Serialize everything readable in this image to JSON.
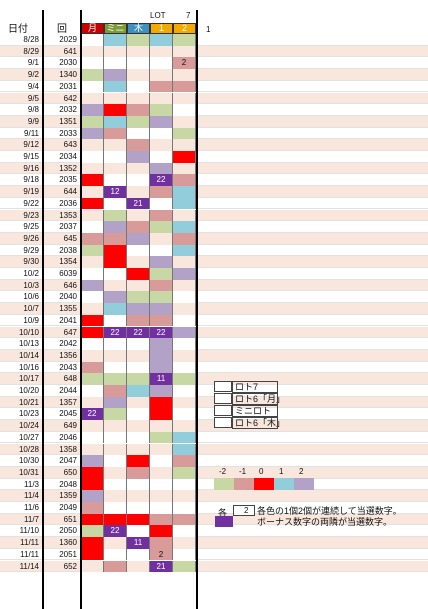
{
  "header": {
    "date_label": "日付",
    "round_label": "回",
    "col_labels": [
      "月",
      "ミニ",
      "木",
      "1",
      "2"
    ],
    "col_colors": [
      "#cc0000",
      "#7f9c3c",
      "#3f8fbf",
      "#f2a900",
      "#f2a900"
    ],
    "lot_label": "LOT",
    "top_right_label": "7",
    "extra_label": "1"
  },
  "colors": {
    "pink": "#f9e6dc",
    "gray": "#efefef",
    "c_m2": "#c7d8a4",
    "c_m1": "#d99a9a",
    "c_0": "#ff0000",
    "c_p1": "#92cddc",
    "c_p2": "#b3a2c7",
    "bonus": "#7030a0"
  },
  "rows": [
    {
      "date": "8/28",
      "round": "2029",
      "cells": [
        "",
        "c_p1",
        "c_m2",
        "c_p1",
        "c_m2"
      ],
      "labels": [
        "",
        "",
        "",
        "",
        ""
      ]
    },
    {
      "date": "8/29",
      "round": "641",
      "cells": [
        "",
        "",
        "",
        "",
        ""
      ],
      "labels": [
        "",
        "",
        "",
        "",
        ""
      ]
    },
    {
      "date": "9/1",
      "round": "2030",
      "cells": [
        "",
        "",
        "",
        "",
        "c_m1"
      ],
      "labels": [
        "",
        "",
        "",
        "",
        "2"
      ]
    },
    {
      "date": "9/2",
      "round": "1340",
      "cells": [
        "c_m2",
        "c_p2",
        "",
        "",
        ""
      ],
      "labels": [
        "",
        "",
        "",
        "",
        ""
      ]
    },
    {
      "date": "9/4",
      "round": "2031",
      "cells": [
        "",
        "c_p1",
        "",
        "c_m1",
        "c_m1"
      ],
      "labels": [
        "",
        "",
        "",
        "",
        ""
      ]
    },
    {
      "date": "9/5",
      "round": "642",
      "cells": [
        "",
        "",
        "",
        "",
        ""
      ],
      "labels": [
        "",
        "",
        "",
        "",
        ""
      ]
    },
    {
      "date": "9/8",
      "round": "2032",
      "cells": [
        "c_p2",
        "c_0",
        "c_m1",
        "c_m2",
        ""
      ],
      "labels": [
        "",
        "",
        "",
        "",
        ""
      ]
    },
    {
      "date": "9/9",
      "round": "1351",
      "cells": [
        "c_m2",
        "c_p1",
        "c_m2",
        "c_p2",
        ""
      ],
      "labels": [
        "",
        "",
        "",
        "",
        ""
      ]
    },
    {
      "date": "9/11",
      "round": "2033",
      "cells": [
        "c_p2",
        "c_m1",
        "",
        "",
        "c_m2"
      ],
      "labels": [
        "",
        "",
        "",
        "",
        ""
      ]
    },
    {
      "date": "9/12",
      "round": "643",
      "cells": [
        "",
        "",
        "c_m1",
        "",
        ""
      ],
      "labels": [
        "",
        "",
        "",
        "",
        ""
      ]
    },
    {
      "date": "9/15",
      "round": "2034",
      "cells": [
        "",
        "",
        "c_p2",
        "",
        "c_0"
      ],
      "labels": [
        "",
        "",
        "",
        "",
        ""
      ]
    },
    {
      "date": "9/16",
      "round": "1352",
      "cells": [
        "",
        "",
        "",
        "c_p2",
        ""
      ],
      "labels": [
        "",
        "",
        "",
        "",
        ""
      ]
    },
    {
      "date": "9/18",
      "round": "2035",
      "cells": [
        "c_0",
        "",
        "",
        "bonus",
        "c_m1"
      ],
      "labels": [
        "",
        "",
        "",
        "22",
        ""
      ]
    },
    {
      "date": "9/19",
      "round": "644",
      "cells": [
        "",
        "bonus",
        "",
        "c_m1",
        "c_p1"
      ],
      "labels": [
        "",
        "12",
        "",
        "",
        ""
      ]
    },
    {
      "date": "9/22",
      "round": "2036",
      "cells": [
        "c_0",
        "",
        "bonus",
        "",
        "c_p1"
      ],
      "labels": [
        "",
        "",
        "21",
        "",
        ""
      ]
    },
    {
      "date": "9/23",
      "round": "1353",
      "cells": [
        "",
        "c_m2",
        "",
        "c_m1",
        ""
      ],
      "labels": [
        "",
        "",
        "",
        "",
        ""
      ]
    },
    {
      "date": "9/25",
      "round": "2037",
      "cells": [
        "",
        "c_p2",
        "c_m1",
        "c_m2",
        "c_p1"
      ],
      "labels": [
        "",
        "",
        "",
        "",
        ""
      ]
    },
    {
      "date": "9/26",
      "round": "645",
      "cells": [
        "c_m1",
        "c_m1",
        "c_p2",
        "",
        "c_m1"
      ],
      "labels": [
        "",
        "",
        "",
        "",
        ""
      ]
    },
    {
      "date": "9/29",
      "round": "2038",
      "cells": [
        "c_m2",
        "c_0",
        "",
        "",
        "c_p1"
      ],
      "labels": [
        "",
        "",
        "",
        "",
        ""
      ]
    },
    {
      "date": "9/30",
      "round": "1354",
      "cells": [
        "",
        "c_0",
        "",
        "c_p2",
        ""
      ],
      "labels": [
        "",
        "",
        "",
        "",
        ""
      ]
    },
    {
      "date": "10/2",
      "round": "6039",
      "cells": [
        "",
        "",
        "c_0",
        "c_m2",
        "c_p2"
      ],
      "labels": [
        "",
        "",
        "",
        "",
        ""
      ]
    },
    {
      "date": "10/3",
      "round": "646",
      "cells": [
        "c_p2",
        "",
        "",
        "c_m1",
        ""
      ],
      "labels": [
        "",
        "",
        "",
        "",
        ""
      ]
    },
    {
      "date": "10/6",
      "round": "2040",
      "cells": [
        "",
        "c_p2",
        "c_m2",
        "c_m2",
        ""
      ],
      "labels": [
        "",
        "",
        "",
        "",
        ""
      ]
    },
    {
      "date": "10/7",
      "round": "1355",
      "cells": [
        "",
        "c_p1",
        "c_p2",
        "c_p2",
        ""
      ],
      "labels": [
        "",
        "",
        "",
        "",
        ""
      ]
    },
    {
      "date": "10/9",
      "round": "2041",
      "cells": [
        "c_0",
        "",
        "c_m1",
        "c_m1",
        ""
      ],
      "labels": [
        "",
        "",
        "",
        "",
        ""
      ]
    },
    {
      "date": "10/10",
      "round": "647",
      "cells": [
        "c_0",
        "bonus",
        "bonus",
        "bonus",
        "c_p2"
      ],
      "labels": [
        "",
        "22",
        "22",
        "22",
        ""
      ]
    },
    {
      "date": "10/13",
      "round": "2042",
      "cells": [
        "",
        "",
        "",
        "c_p2",
        ""
      ],
      "labels": [
        "",
        "",
        "",
        "",
        ""
      ]
    },
    {
      "date": "10/14",
      "round": "1356",
      "cells": [
        "",
        "",
        "",
        "c_p2",
        ""
      ],
      "labels": [
        "",
        "",
        "",
        "",
        ""
      ]
    },
    {
      "date": "10/16",
      "round": "2043",
      "cells": [
        "c_m1",
        "",
        "",
        "c_p2",
        ""
      ],
      "labels": [
        "",
        "",
        "",
        "",
        ""
      ]
    },
    {
      "date": "10/17",
      "round": "648",
      "cells": [
        "c_m2",
        "c_m2",
        "c_m2",
        "bonus",
        "c_m2"
      ],
      "labels": [
        "",
        "",
        "",
        "11",
        ""
      ]
    },
    {
      "date": "10/20",
      "round": "2044",
      "cells": [
        "",
        "c_m1",
        "c_p1",
        "c_p2",
        ""
      ],
      "labels": [
        "",
        "",
        "",
        "",
        ""
      ]
    },
    {
      "date": "10/21",
      "round": "1357",
      "cells": [
        "",
        "c_p2",
        "",
        "c_0",
        ""
      ],
      "labels": [
        "",
        "",
        "",
        "",
        ""
      ]
    },
    {
      "date": "10/23",
      "round": "2045",
      "cells": [
        "bonus",
        "c_m2",
        "",
        "c_0",
        ""
      ],
      "labels": [
        "22",
        "",
        "",
        "",
        ""
      ]
    },
    {
      "date": "10/24",
      "round": "649",
      "cells": [
        "",
        "",
        "",
        "",
        ""
      ],
      "labels": [
        "",
        "",
        "",
        "",
        ""
      ]
    },
    {
      "date": "10/27",
      "round": "2046",
      "cells": [
        "",
        "",
        "",
        "c_m2",
        "c_p1"
      ],
      "labels": [
        "",
        "",
        "",
        "",
        ""
      ]
    },
    {
      "date": "10/28",
      "round": "1358",
      "cells": [
        "",
        "",
        "",
        "",
        "c_p1"
      ],
      "labels": [
        "",
        "",
        "",
        "",
        ""
      ]
    },
    {
      "date": "10/30",
      "round": "2047",
      "cells": [
        "c_p2",
        "",
        "c_0",
        "",
        "c_m1"
      ],
      "labels": [
        "",
        "",
        "",
        "",
        ""
      ]
    },
    {
      "date": "10/31",
      "round": "650",
      "cells": [
        "c_0",
        "",
        "c_m1",
        "",
        "c_m2"
      ],
      "labels": [
        "",
        "",
        "",
        "",
        ""
      ]
    },
    {
      "date": "11/3",
      "round": "2048",
      "cells": [
        "c_0",
        "",
        "",
        "",
        ""
      ],
      "labels": [
        "",
        "",
        "",
        "",
        ""
      ]
    },
    {
      "date": "11/4",
      "round": "1359",
      "cells": [
        "c_p2",
        "",
        "",
        "",
        ""
      ],
      "labels": [
        "",
        "",
        "",
        "",
        ""
      ]
    },
    {
      "date": "11/6",
      "round": "2049",
      "cells": [
        "c_m1",
        "",
        "",
        "",
        ""
      ],
      "labels": [
        "",
        "",
        "",
        "",
        ""
      ]
    },
    {
      "date": "11/7",
      "round": "651",
      "cells": [
        "c_0",
        "c_0",
        "c_0",
        "c_m1",
        "c_m1"
      ],
      "labels": [
        "",
        "",
        "",
        "",
        ""
      ]
    },
    {
      "date": "11/10",
      "round": "2050",
      "cells": [
        "c_m2",
        "bonus",
        "",
        "c_0",
        ""
      ],
      "labels": [
        "",
        "22",
        "",
        "",
        ""
      ]
    },
    {
      "date": "11/11",
      "round": "1360",
      "cells": [
        "c_0",
        "",
        "bonus",
        "c_m1",
        ""
      ],
      "labels": [
        "",
        "",
        "11",
        "",
        ""
      ]
    },
    {
      "date": "11/11",
      "round": "2051",
      "cells": [
        "c_0",
        "",
        "",
        "c_m1",
        ""
      ],
      "labels": [
        "",
        "",
        "",
        "2",
        ""
      ]
    },
    {
      "date": "11/14",
      "round": "652",
      "cells": [
        "",
        "c_m1",
        "",
        "bonus",
        "c_m2"
      ],
      "labels": [
        "",
        "",
        "",
        "21",
        ""
      ]
    }
  ],
  "legend": {
    "lottery_items": [
      "ロト7",
      "ロト6「月」",
      "ミニロト",
      "ロト6「木」"
    ],
    "scale_labels": [
      "-2",
      "-1",
      "0",
      "1",
      "2"
    ],
    "scale_keys": [
      "c_m2",
      "c_m1",
      "c_0",
      "c_p1",
      "c_p2"
    ],
    "note_prefix": "各",
    "note_number": "2",
    "note_line1": "各色の1個2個が連続して当選数字。",
    "note_line2": "ボーナス数字の両隣が当選数字。"
  }
}
